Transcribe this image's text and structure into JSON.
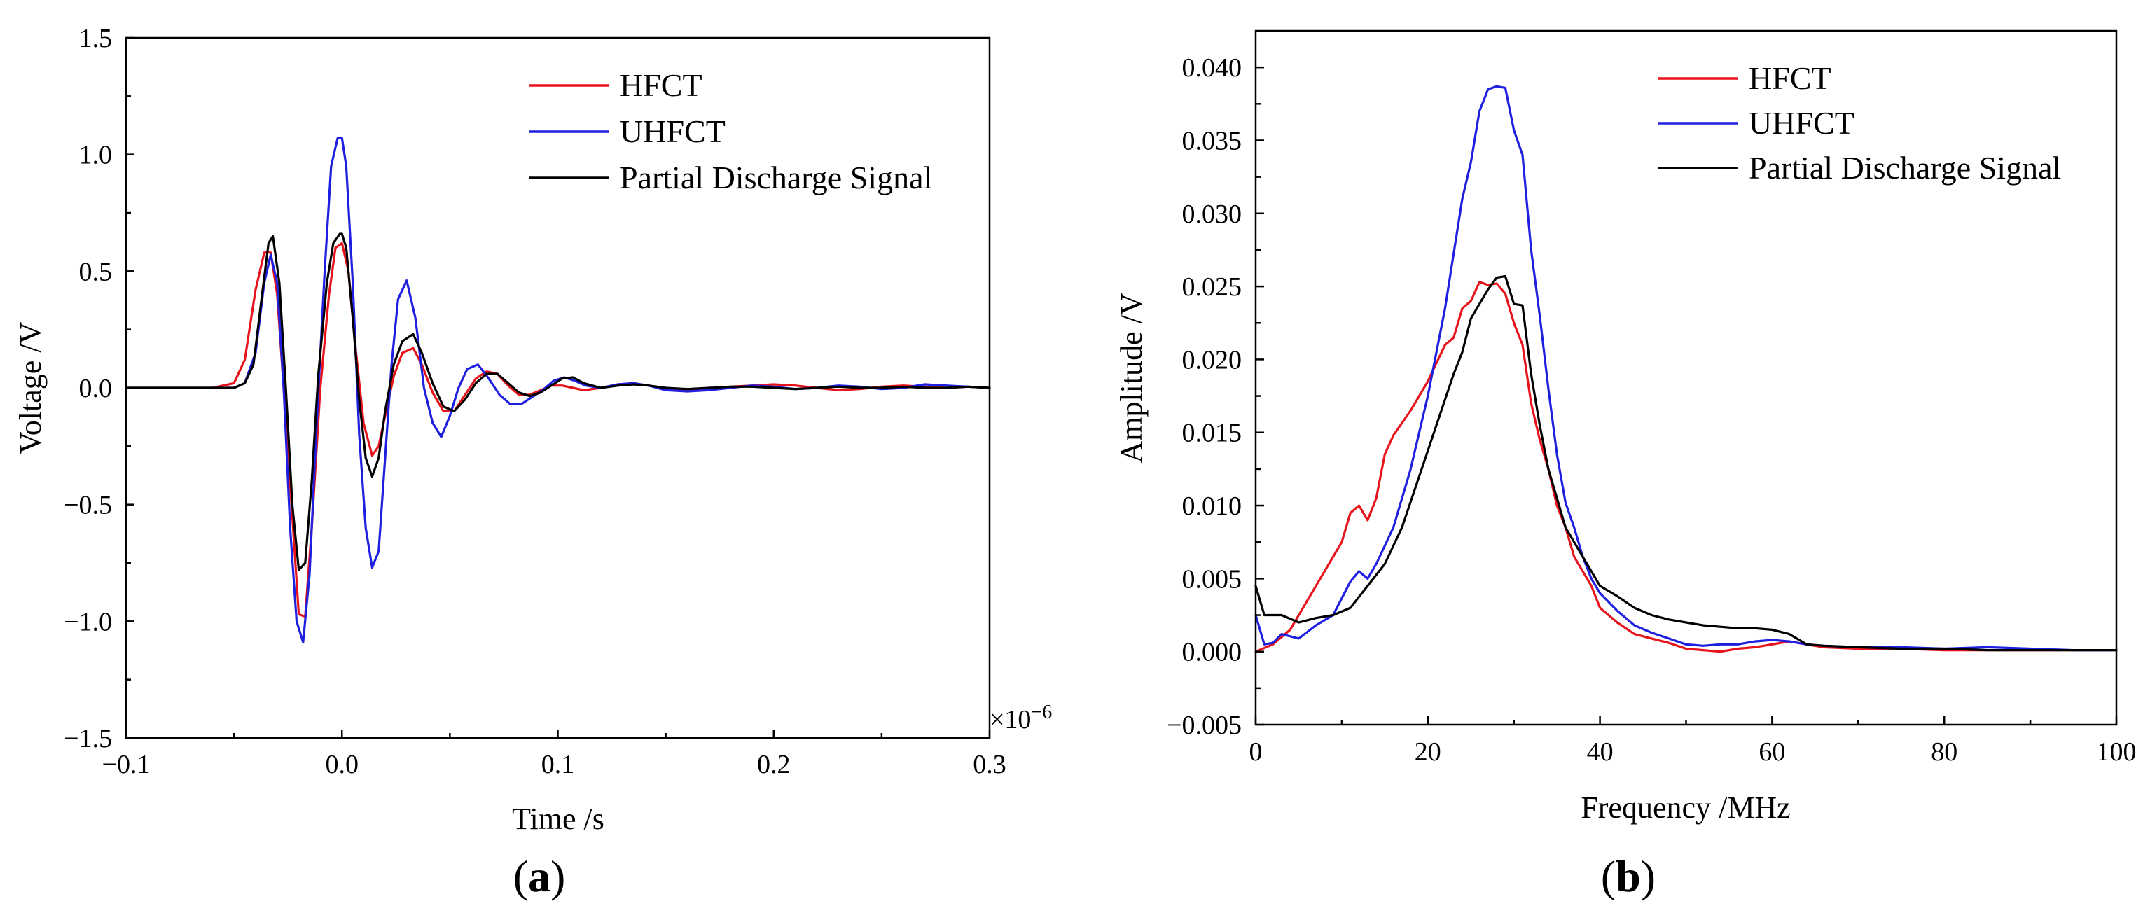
{
  "chart_data": [
    {
      "type": "line",
      "panel": "a",
      "panel_label": "(a)",
      "panel_letter": "a",
      "xlabel": "Time /s",
      "ylabel": "Voltage /V",
      "x_multiplier": "×10",
      "x_multiplier_exp": "−6",
      "xlim": [
        -0.1,
        0.3
      ],
      "ylim": [
        -1.5,
        1.5
      ],
      "xticks": [
        -0.1,
        0.0,
        0.1,
        0.2,
        0.3
      ],
      "xtick_labels": [
        "−0.1",
        "0.0",
        "0.1",
        "0.2",
        "0.3"
      ],
      "yticks": [
        -1.5,
        -1.0,
        -0.5,
        0.0,
        0.5,
        1.0,
        1.5
      ],
      "ytick_labels": [
        "−1.5",
        "−1.0",
        "−0.5",
        "0.0",
        "0.5",
        "1.0",
        "1.5"
      ],
      "legend_position": "top-right",
      "series": [
        {
          "name": "HFCT",
          "color": "#e8141c",
          "x": [
            -0.1,
            -0.06,
            -0.05,
            -0.045,
            -0.04,
            -0.036,
            -0.033,
            -0.03,
            -0.027,
            -0.023,
            -0.02,
            -0.017,
            -0.014,
            -0.01,
            -0.006,
            -0.003,
            0.0,
            0.003,
            0.006,
            0.01,
            0.014,
            0.017,
            0.02,
            0.024,
            0.028,
            0.033,
            0.037,
            0.042,
            0.047,
            0.052,
            0.057,
            0.062,
            0.067,
            0.072,
            0.077,
            0.082,
            0.087,
            0.092,
            0.097,
            0.102,
            0.107,
            0.112,
            0.12,
            0.128,
            0.135,
            0.142,
            0.15,
            0.16,
            0.17,
            0.18,
            0.19,
            0.2,
            0.21,
            0.22,
            0.23,
            0.24,
            0.25,
            0.26,
            0.27,
            0.28,
            0.29,
            0.3
          ],
          "y": [
            0.0,
            0.0,
            0.02,
            0.12,
            0.42,
            0.58,
            0.58,
            0.4,
            0.0,
            -0.55,
            -0.97,
            -0.98,
            -0.6,
            0.0,
            0.4,
            0.6,
            0.62,
            0.5,
            0.2,
            -0.15,
            -0.29,
            -0.25,
            -0.12,
            0.05,
            0.15,
            0.17,
            0.1,
            -0.02,
            -0.1,
            -0.1,
            -0.03,
            0.04,
            0.07,
            0.06,
            0.01,
            -0.03,
            -0.03,
            -0.01,
            0.01,
            0.01,
            0.0,
            -0.01,
            0.0,
            0.015,
            0.02,
            0.01,
            -0.005,
            -0.01,
            -0.005,
            0.005,
            0.01,
            0.015,
            0.01,
            0.0,
            -0.01,
            -0.005,
            0.005,
            0.01,
            0.005,
            0.0,
            0.005,
            0.0
          ]
        },
        {
          "name": "UHFCT",
          "color": "#1f1fe0",
          "x": [
            -0.1,
            -0.05,
            -0.045,
            -0.04,
            -0.036,
            -0.033,
            -0.03,
            -0.027,
            -0.024,
            -0.021,
            -0.018,
            -0.015,
            -0.012,
            -0.008,
            -0.005,
            -0.002,
            0.0,
            0.002,
            0.005,
            0.008,
            0.011,
            0.014,
            0.017,
            0.02,
            0.023,
            0.026,
            0.03,
            0.034,
            0.038,
            0.042,
            0.046,
            0.05,
            0.054,
            0.058,
            0.063,
            0.068,
            0.073,
            0.078,
            0.083,
            0.088,
            0.093,
            0.098,
            0.103,
            0.108,
            0.113,
            0.12,
            0.128,
            0.135,
            0.142,
            0.15,
            0.16,
            0.17,
            0.18,
            0.19,
            0.2,
            0.21,
            0.22,
            0.23,
            0.24,
            0.25,
            0.26,
            0.27,
            0.28,
            0.29,
            0.3
          ],
          "y": [
            0.0,
            0.0,
            0.02,
            0.15,
            0.45,
            0.57,
            0.45,
            0.0,
            -0.6,
            -1.0,
            -1.09,
            -0.8,
            -0.2,
            0.5,
            0.95,
            1.07,
            1.07,
            0.95,
            0.45,
            -0.2,
            -0.6,
            -0.77,
            -0.7,
            -0.3,
            0.1,
            0.38,
            0.46,
            0.3,
            0.0,
            -0.15,
            -0.21,
            -0.12,
            0.0,
            0.08,
            0.1,
            0.04,
            -0.03,
            -0.07,
            -0.07,
            -0.04,
            -0.01,
            0.03,
            0.045,
            0.03,
            0.01,
            0.0,
            0.015,
            0.02,
            0.01,
            -0.01,
            -0.015,
            -0.01,
            0.0,
            0.01,
            0.005,
            -0.005,
            0.0,
            0.01,
            0.005,
            -0.005,
            0.0,
            0.015,
            0.01,
            0.005,
            0.0
          ]
        },
        {
          "name": "Partial Discharge Signal",
          "color": "#000000",
          "x": [
            -0.1,
            -0.06,
            -0.05,
            -0.045,
            -0.041,
            -0.037,
            -0.034,
            -0.032,
            -0.029,
            -0.026,
            -0.023,
            -0.02,
            -0.017,
            -0.014,
            -0.011,
            -0.007,
            -0.004,
            -0.001,
            0.0,
            0.002,
            0.005,
            0.008,
            0.011,
            0.014,
            0.017,
            0.02,
            0.024,
            0.028,
            0.033,
            0.037,
            0.042,
            0.047,
            0.052,
            0.057,
            0.062,
            0.067,
            0.072,
            0.077,
            0.082,
            0.087,
            0.092,
            0.097,
            0.102,
            0.107,
            0.112,
            0.12,
            0.128,
            0.135,
            0.142,
            0.15,
            0.16,
            0.17,
            0.18,
            0.19,
            0.2,
            0.21,
            0.22,
            0.23,
            0.24,
            0.25,
            0.26,
            0.27,
            0.28,
            0.29,
            0.3
          ],
          "y": [
            0.0,
            0.0,
            0.0,
            0.02,
            0.1,
            0.4,
            0.62,
            0.65,
            0.45,
            0.0,
            -0.5,
            -0.78,
            -0.75,
            -0.4,
            0.05,
            0.45,
            0.62,
            0.66,
            0.66,
            0.6,
            0.3,
            -0.05,
            -0.3,
            -0.38,
            -0.3,
            -0.1,
            0.1,
            0.2,
            0.23,
            0.15,
            0.02,
            -0.08,
            -0.1,
            -0.05,
            0.02,
            0.06,
            0.06,
            0.02,
            -0.02,
            -0.035,
            -0.02,
            0.01,
            0.04,
            0.045,
            0.02,
            0.0,
            0.01,
            0.015,
            0.01,
            0.0,
            -0.005,
            0.0,
            0.005,
            0.005,
            0.0,
            -0.005,
            0.0,
            0.005,
            0.0,
            0.0,
            0.005,
            0.0,
            0.0,
            0.005,
            0.0
          ]
        }
      ]
    },
    {
      "type": "line",
      "panel": "b",
      "panel_label": "(b)",
      "panel_letter": "b",
      "xlabel": "Frequency /MHz",
      "ylabel": "Amplitude /V",
      "xlim": [
        0,
        100
      ],
      "ylim": [
        -0.005,
        0.0425
      ],
      "xticks": [
        0,
        20,
        40,
        60,
        80,
        100
      ],
      "xtick_labels": [
        "0",
        "20",
        "40",
        "60",
        "80",
        "100"
      ],
      "yticks": [
        -0.005,
        0.0,
        0.005,
        0.01,
        0.015,
        0.02,
        0.025,
        0.03,
        0.035,
        0.04
      ],
      "ytick_labels": [
        "−0.005",
        "0.000",
        "0.005",
        "0.010",
        "0.015",
        "0.020",
        "0.025",
        "0.030",
        "0.035",
        "0.040"
      ],
      "legend_position": "top-right",
      "series": [
        {
          "name": "HFCT",
          "color": "#e8141c",
          "x": [
            0,
            2,
            4,
            6,
            8,
            10,
            11,
            12,
            13,
            14,
            15,
            16,
            18,
            20,
            22,
            23,
            24,
            25,
            26,
            27,
            28,
            29,
            30,
            31,
            32,
            33,
            34,
            35,
            36,
            37,
            38,
            39,
            40,
            42,
            44,
            46,
            48,
            50,
            52,
            54,
            56,
            58,
            60,
            62,
            64,
            66,
            70,
            75,
            80,
            85,
            90,
            95,
            100
          ],
          "y": [
            0.0,
            0.0005,
            0.0015,
            0.0035,
            0.0055,
            0.0075,
            0.0095,
            0.01,
            0.009,
            0.0105,
            0.0135,
            0.0148,
            0.0165,
            0.0185,
            0.021,
            0.0215,
            0.0235,
            0.024,
            0.0253,
            0.0251,
            0.0252,
            0.0245,
            0.0225,
            0.021,
            0.017,
            0.0145,
            0.0125,
            0.01,
            0.0085,
            0.0065,
            0.0055,
            0.0045,
            0.003,
            0.002,
            0.0012,
            0.0009,
            0.0006,
            0.0002,
            0.0001,
            0.0,
            0.0002,
            0.0003,
            0.0005,
            0.0007,
            0.0005,
            0.0003,
            0.0002,
            0.0002,
            0.0001,
            0.0001,
            0.0001,
            0.0001,
            0.0001
          ]
        },
        {
          "name": "UHFCT",
          "color": "#1f1fe0",
          "x": [
            0,
            1,
            2,
            3,
            5,
            7,
            9,
            11,
            12,
            13,
            14,
            16,
            18,
            20,
            22,
            24,
            25,
            26,
            27,
            28,
            29,
            30,
            31,
            32,
            33,
            34,
            35,
            36,
            37,
            38,
            39,
            40,
            42,
            44,
            46,
            48,
            50,
            52,
            54,
            56,
            58,
            60,
            62,
            64,
            66,
            70,
            75,
            80,
            85,
            90,
            95,
            100
          ],
          "y": [
            0.0025,
            0.0005,
            0.0006,
            0.0012,
            0.0009,
            0.0018,
            0.0025,
            0.0048,
            0.0055,
            0.005,
            0.006,
            0.0085,
            0.0125,
            0.0175,
            0.0235,
            0.031,
            0.0335,
            0.037,
            0.0385,
            0.0387,
            0.0386,
            0.0357,
            0.034,
            0.0275,
            0.023,
            0.018,
            0.0135,
            0.0102,
            0.0085,
            0.0065,
            0.005,
            0.004,
            0.0028,
            0.0018,
            0.0013,
            0.0009,
            0.0005,
            0.0004,
            0.0005,
            0.0005,
            0.0007,
            0.0008,
            0.0007,
            0.0005,
            0.0004,
            0.0003,
            0.0003,
            0.0002,
            0.0003,
            0.0002,
            0.0001,
            0.0001
          ]
        },
        {
          "name": "Partial Discharge Signal",
          "color": "#000000",
          "x": [
            0,
            1,
            3,
            5,
            7,
            9,
            11,
            13,
            15,
            17,
            19,
            21,
            23,
            24,
            25,
            26,
            27,
            28,
            29,
            30,
            31,
            32,
            33,
            34,
            35,
            36,
            37,
            38,
            39,
            40,
            42,
            44,
            46,
            48,
            50,
            52,
            54,
            56,
            58,
            60,
            62,
            64,
            66,
            70,
            75,
            80,
            85,
            90,
            95,
            100
          ],
          "y": [
            0.0045,
            0.0025,
            0.0025,
            0.002,
            0.0023,
            0.0025,
            0.003,
            0.0045,
            0.006,
            0.0085,
            0.012,
            0.0155,
            0.019,
            0.0205,
            0.0228,
            0.0238,
            0.0248,
            0.0256,
            0.0257,
            0.0238,
            0.0237,
            0.019,
            0.0155,
            0.0125,
            0.0105,
            0.0085,
            0.0075,
            0.0065,
            0.0055,
            0.0045,
            0.0038,
            0.003,
            0.0025,
            0.0022,
            0.002,
            0.0018,
            0.0017,
            0.0016,
            0.0016,
            0.0015,
            0.0012,
            0.0005,
            0.0004,
            0.0003,
            0.0002,
            0.0002,
            0.0001,
            0.0001,
            0.0001,
            0.0001
          ]
        }
      ]
    }
  ]
}
